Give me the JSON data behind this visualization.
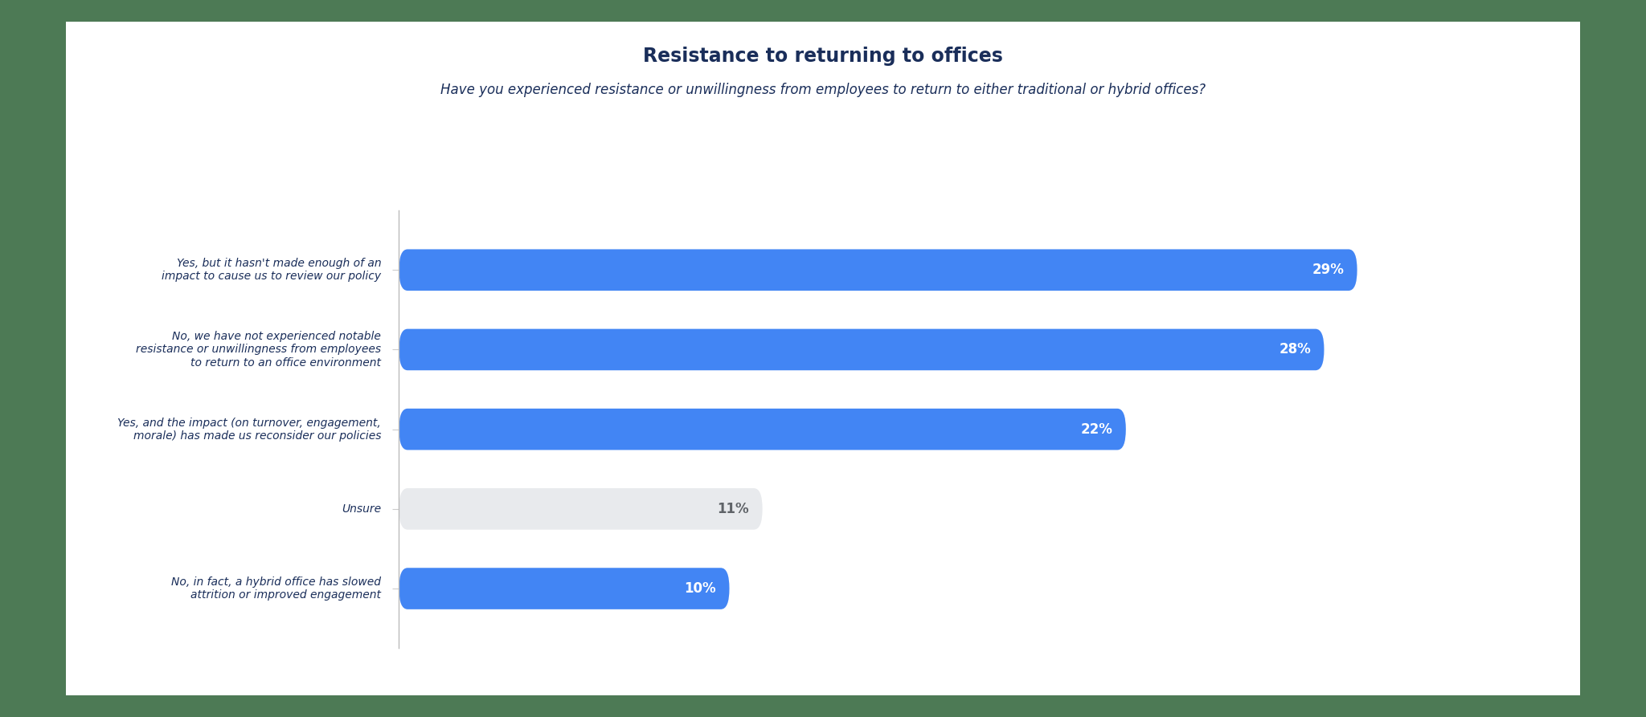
{
  "title": "Resistance to returning to offices",
  "subtitle": "Have you experienced resistance or unwillingness from employees to return to either traditional or hybrid offices?",
  "categories": [
    "Yes, but it hasn't made enough of an\nimpact to cause us to review our policy",
    "No, we have not experienced notable\nresistance or unwillingness from employees\nto return to an office environment",
    "Yes, and the impact (on turnover, engagement,\nmorale) has made us reconsider our policies",
    "Unsure",
    "No, in fact, a hybrid office has slowed\nattrition or improved engagement"
  ],
  "values": [
    29,
    28,
    22,
    11,
    10
  ],
  "bar_colors": [
    "#4285F4",
    "#4285F4",
    "#4285F4",
    "#E8EAED",
    "#4285F4"
  ],
  "label_colors": [
    "#ffffff",
    "#ffffff",
    "#ffffff",
    "#5f6368",
    "#ffffff"
  ],
  "outer_background": "#4d7a55",
  "inner_background": "#ffffff",
  "title_color": "#1a2e5a",
  "subtitle_color": "#1a2e5a",
  "ylabel_color": "#1a2e5a",
  "title_fontsize": 17,
  "subtitle_fontsize": 12,
  "value_fontsize": 12,
  "ylabel_fontsize": 10,
  "xlim": [
    0,
    33
  ],
  "bar_height": 0.52
}
